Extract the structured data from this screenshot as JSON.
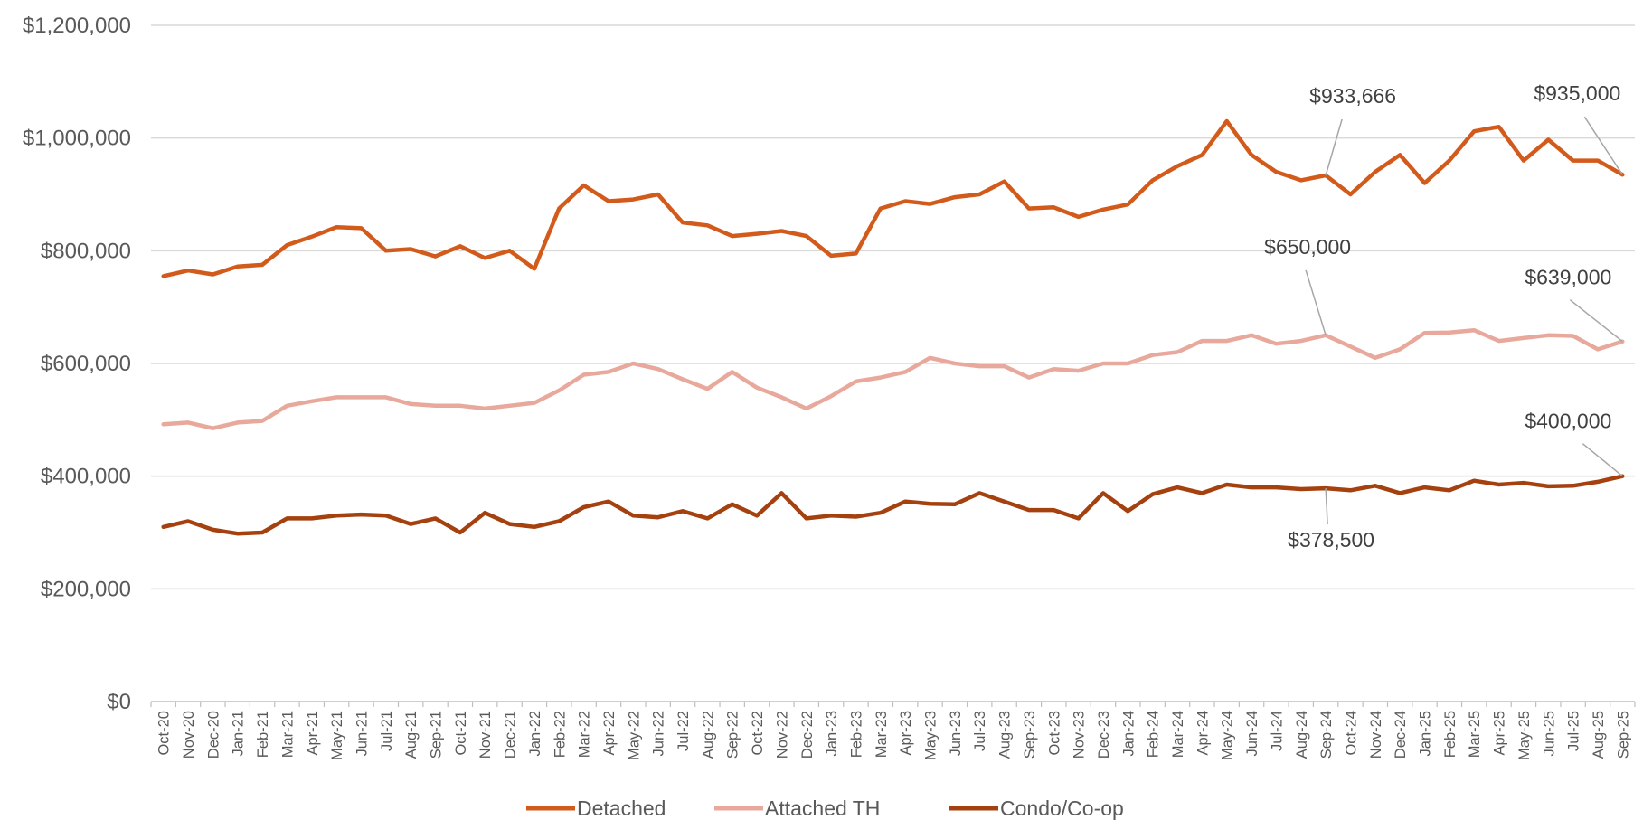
{
  "chart_data": {
    "type": "line",
    "title": "",
    "xlabel": "",
    "ylabel": "",
    "ylim": [
      0,
      1200000
    ],
    "yticks": [
      "$0",
      "$200,000",
      "$400,000",
      "$600,000",
      "$800,000",
      "$1,000,000",
      "$1,200,000"
    ],
    "grid": true,
    "legend_position": "bottom",
    "categories": [
      "Oct-20",
      "Nov-20",
      "Dec-20",
      "Jan-21",
      "Feb-21",
      "Mar-21",
      "Apr-21",
      "May-21",
      "Jun-21",
      "Jul-21",
      "Aug-21",
      "Sep-21",
      "Oct-21",
      "Nov-21",
      "Dec-21",
      "Jan-22",
      "Feb-22",
      "Mar-22",
      "Apr-22",
      "May-22",
      "Jun-22",
      "Jul-22",
      "Aug-22",
      "Sep-22",
      "Oct-22",
      "Nov-22",
      "Dec-22",
      "Jan-23",
      "Feb-23",
      "Mar-23",
      "Apr-23",
      "May-23",
      "Jun-23",
      "Jul-23",
      "Aug-23",
      "Sep-23",
      "Oct-23",
      "Nov-23",
      "Dec-23",
      "Jan-24",
      "Feb-24",
      "Mar-24",
      "Apr-24",
      "May-24",
      "Jun-24",
      "Jul-24",
      "Aug-24",
      "Sep-24",
      "Oct-24",
      "Nov-24",
      "Dec-24",
      "Jan-25",
      "Feb-25",
      "Mar-25",
      "Apr-25",
      "May-25",
      "Jun-25",
      "Jul-25",
      "Aug-25",
      "Sep-25"
    ],
    "series": [
      {
        "name": "Detached",
        "color": "#D25B1C",
        "values": [
          755000,
          765000,
          758000,
          772000,
          775000,
          810000,
          825000,
          842000,
          840000,
          800000,
          803000,
          790000,
          808000,
          787000,
          800000,
          768000,
          875000,
          916000,
          888000,
          891000,
          900000,
          850000,
          845000,
          826000,
          830000,
          835000,
          826000,
          791000,
          795000,
          875000,
          888000,
          883000,
          895000,
          900000,
          923000,
          875000,
          877000,
          860000,
          873000,
          882000,
          925000,
          950000,
          970000,
          1030000,
          970000,
          940000,
          925000,
          933666,
          900000,
          940000,
          970000,
          920000,
          960000,
          1012000,
          1020000,
          960000,
          997000,
          960000,
          960000,
          935000
        ]
      },
      {
        "name": "Attached TH",
        "color": "#E8A99C",
        "values": [
          492000,
          495000,
          485000,
          495000,
          498000,
          525000,
          533000,
          540000,
          540000,
          540000,
          528000,
          525000,
          525000,
          520000,
          525000,
          530000,
          552000,
          580000,
          585000,
          600000,
          590000,
          572000,
          555000,
          585000,
          557000,
          540000,
          520000,
          542000,
          568000,
          575000,
          585000,
          610000,
          600000,
          595000,
          595000,
          575000,
          590000,
          587000,
          600000,
          600000,
          615000,
          620000,
          640000,
          640000,
          650000,
          635000,
          640000,
          650000,
          630000,
          610000,
          625000,
          654000,
          655000,
          659000,
          640000,
          645000,
          650000,
          649000,
          625000,
          639000
        ]
      },
      {
        "name": "Condo/Co-op",
        "color": "#A5400F",
        "values": [
          310000,
          320000,
          305000,
          298000,
          300000,
          325000,
          325000,
          330000,
          332000,
          330000,
          315000,
          325000,
          300000,
          335000,
          315000,
          310000,
          320000,
          345000,
          355000,
          330000,
          327000,
          338000,
          325000,
          350000,
          330000,
          370000,
          325000,
          330000,
          328000,
          335000,
          355000,
          351000,
          350000,
          370000,
          355000,
          340000,
          340000,
          325000,
          370000,
          338000,
          368000,
          380000,
          370000,
          385000,
          380000,
          380000,
          377000,
          378500,
          375000,
          383000,
          370000,
          380000,
          375000,
          392000,
          385000,
          388000,
          382000,
          383000,
          390000,
          400000
        ]
      }
    ],
    "annotations": [
      {
        "text": "$933,666",
        "series": "Detached",
        "category": "Sep-24",
        "value": 933666
      },
      {
        "text": "$935,000",
        "series": "Detached",
        "category": "Sep-25",
        "value": 935000
      },
      {
        "text": "$650,000",
        "series": "Attached TH",
        "category": "Sep-24",
        "value": 650000
      },
      {
        "text": "$639,000",
        "series": "Attached TH",
        "category": "Sep-25",
        "value": 639000
      },
      {
        "text": "$400,000",
        "series": "Condo/Co-op",
        "category": "Sep-25",
        "value": 400000
      },
      {
        "text": "$378,500",
        "series": "Condo/Co-op",
        "category": "Sep-24",
        "value": 378500
      }
    ]
  }
}
